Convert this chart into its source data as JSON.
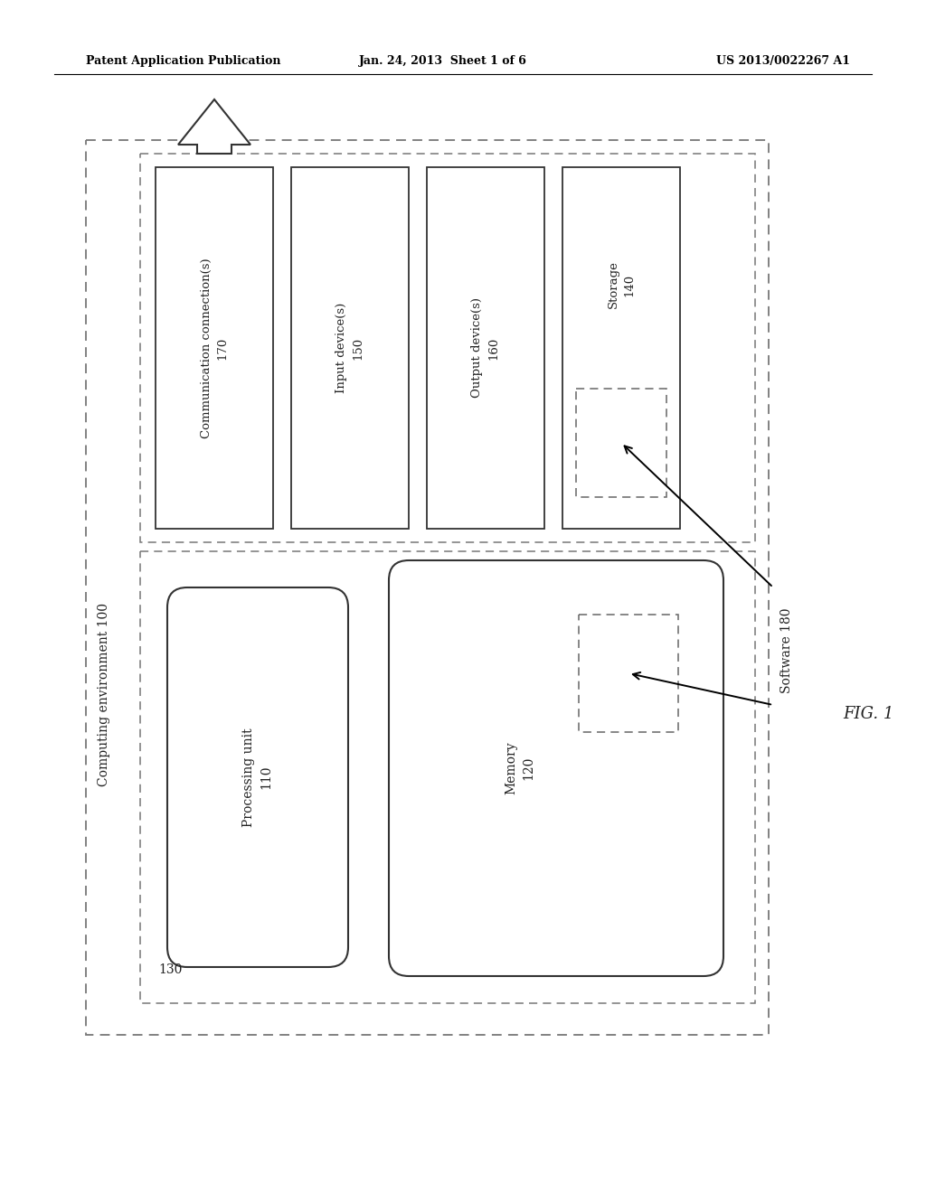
{
  "header_left": "Patent Application Publication",
  "header_center": "Jan. 24, 2013  Sheet 1 of 6",
  "header_right": "US 2013/0022267 A1",
  "fig_label": "FIG. 1",
  "bg_color": "#ffffff",
  "outer_box_label": "Computing environment 100",
  "inner_dashed_label": "130",
  "comm_box_label": "Communication connection(s)\n170",
  "input_box_label": "Input device(s)\n150",
  "output_box_label": "Output device(s)\n160",
  "storage_box_label": "Storage\n140",
  "software_label": "Software 180",
  "memory_box_label": "Memory\n120",
  "processing_box_label": "Processing unit\n110",
  "line_color": "#555555",
  "text_color": "#222222"
}
